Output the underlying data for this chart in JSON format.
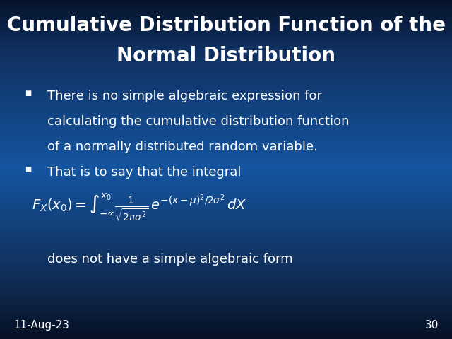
{
  "title_line1": "Cumulative Distribution Function of the",
  "title_line2": "Normal Distribution",
  "bullet1_line1": "There is no simple algebraic expression for",
  "bullet1_line2": "calculating the cumulative distribution function",
  "bullet1_line3": "of a normally distributed random variable.",
  "bullet2": "That is to say that the integral",
  "footer_text": "does not have a simple algebraic form",
  "date_label": "11-Aug-23",
  "page_number": "30",
  "text_color": "#ffffff",
  "title_fontsize": 20,
  "body_fontsize": 13,
  "formula_fontsize": 13,
  "footer_fontsize": 13,
  "date_fontsize": 11,
  "bullet_marker": "■"
}
